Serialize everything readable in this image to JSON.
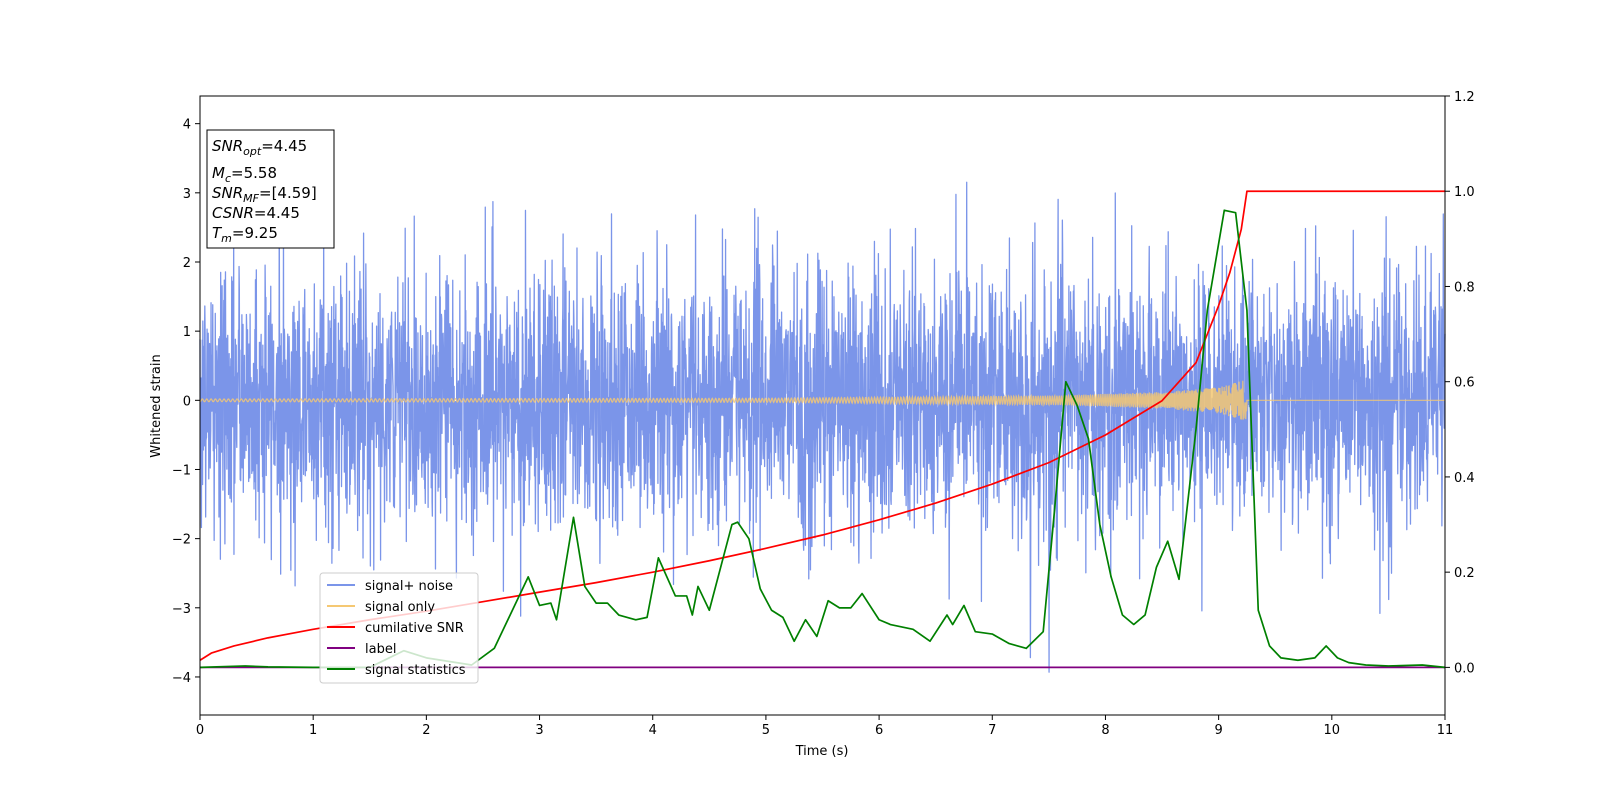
{
  "chart_data": {
    "type": "line",
    "xlabel": "Time (s)",
    "ylabel": "Whitened strain",
    "xlim": [
      0,
      11
    ],
    "ylim": [
      -4.55,
      4.4
    ],
    "y2lim": [
      -0.1,
      1.2
    ],
    "x_ticks": [
      0,
      1,
      2,
      3,
      4,
      5,
      6,
      7,
      8,
      9,
      10,
      11
    ],
    "y_ticks": [
      4,
      3,
      2,
      1,
      0,
      -1,
      -2,
      -3,
      -4
    ],
    "y2_ticks": [
      1.2,
      1.0,
      0.8,
      0.6,
      0.4,
      0.2,
      0.0
    ],
    "tick_labels": {
      "x": [
        "0",
        "1",
        "2",
        "3",
        "4",
        "5",
        "6",
        "7",
        "8",
        "9",
        "10",
        "11"
      ],
      "y": [
        "4",
        "3",
        "2",
        "1",
        "0",
        "−1",
        "−2",
        "−3",
        "−4"
      ],
      "y2": [
        "1.2",
        "1.0",
        "0.8",
        "0.6",
        "0.4",
        "0.2",
        "0.0"
      ]
    },
    "grid": false,
    "legend_position": "lower-left",
    "textbox_position": "top-left",
    "annotations": {
      "snr_opt": {
        "label": "SNR",
        "sub": "opt",
        "value": "=4.45"
      },
      "mc": {
        "label": "M",
        "sub": "c",
        "value": "=5.58"
      },
      "snr_mf": {
        "label": "SNR",
        "sub": "MF",
        "value": "=[4.59]"
      },
      "csnr": {
        "label": "CSNR",
        "value": "=4.45"
      },
      "tm": {
        "label": "T",
        "sub": "m",
        "value": "=9.25"
      }
    },
    "series": [
      {
        "name": "signal+ noise",
        "axis": "left",
        "color": "#7b95e9",
        "style": "noise",
        "std": 0.95,
        "x_range": [
          0,
          11
        ]
      },
      {
        "name": "signal only",
        "axis": "left",
        "color": "#f5c873",
        "style": "chirp",
        "x_range": [
          0,
          11
        ],
        "merger_time": 9.25,
        "envelope": [
          [
            0,
            0.02
          ],
          [
            5,
            0.03
          ],
          [
            7.6,
            0.07
          ],
          [
            8.5,
            0.12
          ],
          [
            9.0,
            0.19
          ],
          [
            9.25,
            0.3
          ],
          [
            9.26,
            0.0
          ],
          [
            11,
            0.0
          ]
        ]
      },
      {
        "name": "cumilative SNR",
        "axis": "right",
        "color": "#ff0000",
        "points": [
          [
            0.0,
            0.015
          ],
          [
            0.1,
            0.03
          ],
          [
            0.3,
            0.045
          ],
          [
            0.6,
            0.062
          ],
          [
            1.0,
            0.08
          ],
          [
            1.5,
            0.1
          ],
          [
            2.0,
            0.118
          ],
          [
            2.5,
            0.138
          ],
          [
            3.0,
            0.158
          ],
          [
            3.5,
            0.178
          ],
          [
            4.0,
            0.2
          ],
          [
            4.5,
            0.224
          ],
          [
            5.0,
            0.25
          ],
          [
            5.5,
            0.278
          ],
          [
            6.0,
            0.31
          ],
          [
            6.5,
            0.345
          ],
          [
            7.0,
            0.385
          ],
          [
            7.5,
            0.43
          ],
          [
            8.0,
            0.488
          ],
          [
            8.5,
            0.56
          ],
          [
            8.8,
            0.64
          ],
          [
            9.0,
            0.76
          ],
          [
            9.1,
            0.83
          ],
          [
            9.2,
            0.92
          ],
          [
            9.25,
            1.0
          ],
          [
            11.0,
            1.0
          ]
        ]
      },
      {
        "name": "label",
        "axis": "right",
        "color": "#800080",
        "points": [
          [
            0,
            0.0
          ],
          [
            11,
            0.0
          ]
        ]
      },
      {
        "name": "signal statistics",
        "axis": "right",
        "color": "#008000",
        "points": [
          [
            0.0,
            0.0
          ],
          [
            0.4,
            0.003
          ],
          [
            0.6,
            0.001
          ],
          [
            1.0,
            0.0
          ],
          [
            1.5,
            0.0
          ],
          [
            1.8,
            0.035
          ],
          [
            2.0,
            0.02
          ],
          [
            2.4,
            0.005
          ],
          [
            2.6,
            0.04
          ],
          [
            2.9,
            0.19
          ],
          [
            3.0,
            0.13
          ],
          [
            3.1,
            0.135
          ],
          [
            3.15,
            0.1
          ],
          [
            3.3,
            0.315
          ],
          [
            3.4,
            0.17
          ],
          [
            3.5,
            0.135
          ],
          [
            3.6,
            0.135
          ],
          [
            3.7,
            0.11
          ],
          [
            3.85,
            0.1
          ],
          [
            3.95,
            0.105
          ],
          [
            4.05,
            0.23
          ],
          [
            4.2,
            0.15
          ],
          [
            4.3,
            0.15
          ],
          [
            4.35,
            0.11
          ],
          [
            4.4,
            0.17
          ],
          [
            4.5,
            0.12
          ],
          [
            4.7,
            0.3
          ],
          [
            4.75,
            0.305
          ],
          [
            4.85,
            0.27
          ],
          [
            4.95,
            0.165
          ],
          [
            5.05,
            0.12
          ],
          [
            5.15,
            0.105
          ],
          [
            5.25,
            0.055
          ],
          [
            5.35,
            0.1
          ],
          [
            5.45,
            0.065
          ],
          [
            5.55,
            0.14
          ],
          [
            5.65,
            0.125
          ],
          [
            5.75,
            0.125
          ],
          [
            5.85,
            0.155
          ],
          [
            6.0,
            0.1
          ],
          [
            6.1,
            0.09
          ],
          [
            6.2,
            0.085
          ],
          [
            6.3,
            0.08
          ],
          [
            6.45,
            0.055
          ],
          [
            6.6,
            0.11
          ],
          [
            6.65,
            0.09
          ],
          [
            6.75,
            0.13
          ],
          [
            6.85,
            0.075
          ],
          [
            7.0,
            0.07
          ],
          [
            7.15,
            0.05
          ],
          [
            7.3,
            0.04
          ],
          [
            7.45,
            0.075
          ],
          [
            7.55,
            0.33
          ],
          [
            7.65,
            0.6
          ],
          [
            7.75,
            0.55
          ],
          [
            7.85,
            0.48
          ],
          [
            7.95,
            0.3
          ],
          [
            8.05,
            0.19
          ],
          [
            8.15,
            0.11
          ],
          [
            8.25,
            0.09
          ],
          [
            8.35,
            0.11
          ],
          [
            8.45,
            0.21
          ],
          [
            8.55,
            0.265
          ],
          [
            8.65,
            0.185
          ],
          [
            8.8,
            0.5
          ],
          [
            8.9,
            0.75
          ],
          [
            9.05,
            0.96
          ],
          [
            9.15,
            0.955
          ],
          [
            9.25,
            0.75
          ],
          [
            9.35,
            0.12
          ],
          [
            9.45,
            0.045
          ],
          [
            9.55,
            0.02
          ],
          [
            9.7,
            0.015
          ],
          [
            9.85,
            0.02
          ],
          [
            9.95,
            0.045
          ],
          [
            10.05,
            0.02
          ],
          [
            10.15,
            0.01
          ],
          [
            10.3,
            0.005
          ],
          [
            10.5,
            0.003
          ],
          [
            10.8,
            0.005
          ],
          [
            11.0,
            0.0
          ]
        ]
      }
    ]
  }
}
